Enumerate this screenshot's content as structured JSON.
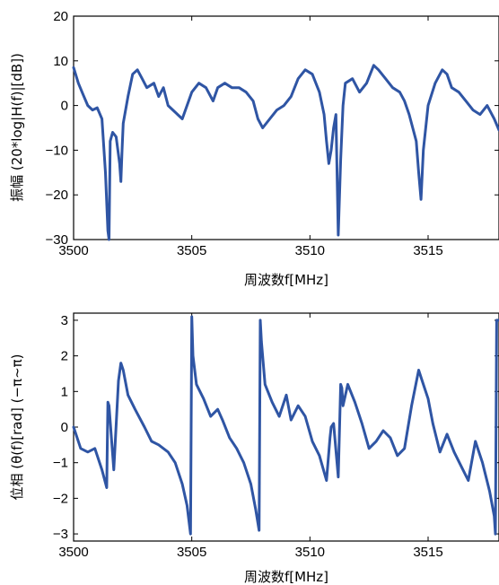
{
  "chart_data": [
    {
      "type": "line",
      "title": "",
      "xlabel": "周波数f[MHz]",
      "ylabel": "振幅 (20*log|H(f)|[dB])",
      "xlim": [
        3500,
        3518
      ],
      "ylim": [
        -30,
        20
      ],
      "xticks": [
        3500,
        3505,
        3510,
        3515
      ],
      "yticks": [
        -30,
        -20,
        -10,
        0,
        10,
        20
      ],
      "grid": false,
      "color": "#2f55a4",
      "series": [
        {
          "x": [
            3500.0,
            3500.2,
            3500.4,
            3500.6,
            3500.8,
            3501.0,
            3501.2,
            3501.35,
            3501.45,
            3501.5,
            3501.55,
            3501.65,
            3501.8,
            3501.95,
            3502.0,
            3502.05,
            3502.1,
            3502.3,
            3502.5,
            3502.7,
            3502.9,
            3503.1,
            3503.4,
            3503.6,
            3503.8,
            3504.0,
            3504.2,
            3504.4,
            3504.6,
            3504.8,
            3505.0,
            3505.3,
            3505.6,
            3505.9,
            3506.1,
            3506.4,
            3506.7,
            3507.0,
            3507.3,
            3507.6,
            3507.8,
            3508.0,
            3508.3,
            3508.6,
            3508.9,
            3509.2,
            3509.5,
            3509.8,
            3510.1,
            3510.4,
            3510.6,
            3510.7,
            3510.8,
            3510.9,
            3511.0,
            3511.1,
            3511.2,
            3511.3,
            3511.4,
            3511.5,
            3511.8,
            3512.1,
            3512.4,
            3512.7,
            3512.9,
            3513.2,
            3513.5,
            3513.8,
            3514.0,
            3514.2,
            3514.4,
            3514.5,
            3514.6,
            3514.7,
            3514.8,
            3515.0,
            3515.3,
            3515.6,
            3515.8,
            3516.0,
            3516.3,
            3516.6,
            3516.9,
            3517.2,
            3517.5,
            3517.8,
            3518.0
          ],
          "values": [
            8.5,
            5,
            2.5,
            0,
            -1,
            -0.5,
            -3,
            -15,
            -28,
            -30,
            -8,
            -6,
            -7,
            -13,
            -17,
            -10,
            -4,
            2,
            7,
            8,
            6,
            4,
            5,
            2,
            4,
            0,
            -1,
            -2,
            -3,
            0,
            3,
            5,
            4,
            1,
            4,
            5,
            4,
            4,
            3,
            1,
            -3,
            -5,
            -3,
            -1,
            0,
            2,
            6,
            8,
            7,
            3,
            -2,
            -8,
            -13,
            -10,
            -5,
            -2,
            -29,
            -12,
            0,
            5,
            6,
            3,
            5,
            9,
            8,
            6,
            4,
            3,
            1,
            -2,
            -6,
            -8,
            -15,
            -21,
            -10,
            0,
            5,
            8,
            7,
            4,
            3,
            1,
            -1,
            -2,
            0,
            -3,
            -5.5
          ]
        }
      ]
    },
    {
      "type": "line",
      "title": "",
      "xlabel": "周波数f[MHz]",
      "ylabel": "位相 (θ(f)[rad] (−π∼π)",
      "xlim": [
        3500,
        3518
      ],
      "ylim": [
        -3.2,
        3.2
      ],
      "xticks": [
        3500,
        3505,
        3510,
        3515
      ],
      "yticks": [
        -3,
        -2,
        -1,
        0,
        1,
        2,
        3
      ],
      "grid": false,
      "color": "#2f55a4",
      "series": [
        {
          "x": [
            3500.0,
            3500.3,
            3500.6,
            3500.9,
            3501.2,
            3501.4,
            3501.45,
            3501.5,
            3501.7,
            3501.9,
            3502.0,
            3502.1,
            3502.3,
            3502.6,
            3503.0,
            3503.3,
            3503.6,
            3504.0,
            3504.3,
            3504.6,
            3504.8,
            3504.95,
            3505.0,
            3505.05,
            3505.2,
            3505.5,
            3505.8,
            3506.1,
            3506.3,
            3506.6,
            3506.9,
            3507.2,
            3507.5,
            3507.7,
            3507.85,
            3507.9,
            3507.95,
            3508.1,
            3508.4,
            3508.7,
            3509.0,
            3509.2,
            3509.5,
            3509.8,
            3510.1,
            3510.4,
            3510.7,
            3510.85,
            3510.9,
            3511.0,
            3511.2,
            3511.3,
            3511.35,
            3511.4,
            3511.6,
            3511.9,
            3512.2,
            3512.5,
            3512.8,
            3513.1,
            3513.4,
            3513.7,
            3514.0,
            3514.3,
            3514.6,
            3514.8,
            3515.0,
            3515.2,
            3515.5,
            3515.8,
            3516.1,
            3516.4,
            3516.7,
            3517.0,
            3517.3,
            3517.6,
            3517.8,
            3517.85,
            3517.9,
            3518.0
          ],
          "values": [
            0,
            -0.6,
            -0.7,
            -0.6,
            -1.2,
            -1.7,
            0.7,
            0.6,
            -1.2,
            1.3,
            1.8,
            1.6,
            0.9,
            0.5,
            0,
            -0.4,
            -0.5,
            -0.7,
            -1,
            -1.6,
            -2.2,
            -3.0,
            3.1,
            2.0,
            1.2,
            0.8,
            0.3,
            0.5,
            0.2,
            -0.3,
            -0.6,
            -1,
            -1.6,
            -2.3,
            -2.9,
            3.0,
            2.4,
            1.2,
            0.7,
            0.3,
            0.9,
            0.2,
            0.6,
            0.3,
            -0.4,
            -0.8,
            -1.5,
            -0.3,
            0,
            0.1,
            -1.4,
            1.2,
            1.1,
            0.6,
            1.2,
            0.7,
            0.1,
            -0.6,
            -0.4,
            -0.1,
            -0.3,
            -0.8,
            -0.6,
            0.6,
            1.6,
            1.2,
            0.8,
            0.1,
            -0.7,
            -0.2,
            -0.7,
            -1.1,
            -1.5,
            -0.4,
            -1,
            -1.8,
            -2.5,
            -3.0,
            3.0,
            3.0
          ]
        }
      ]
    }
  ]
}
